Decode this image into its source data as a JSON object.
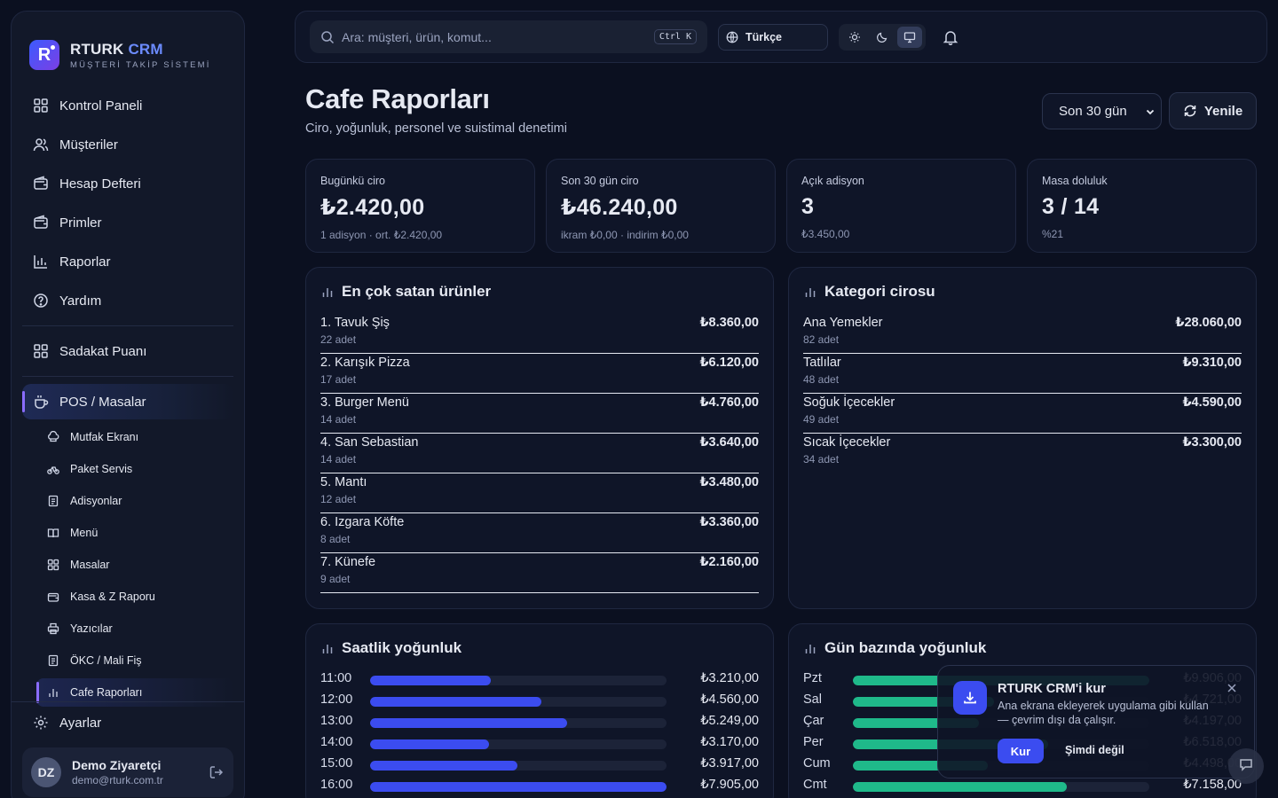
{
  "brand": {
    "name": "RTURK",
    "name_accent": "CRM",
    "subtitle": "MÜŞTERİ TAKİP SİSTEMİ",
    "logo_letter": "R"
  },
  "sidebar": {
    "items": [
      {
        "label": "Kontrol Paneli",
        "icon": "grid-icon"
      },
      {
        "label": "Müşteriler",
        "icon": "users-icon"
      },
      {
        "label": "Hesap Defteri",
        "icon": "wallet-icon"
      },
      {
        "label": "Primler",
        "icon": "wallet-icon"
      },
      {
        "label": "Raporlar",
        "icon": "chart-icon"
      },
      {
        "label": "Yardım",
        "icon": "help-icon"
      }
    ],
    "loyalty": {
      "label": "Sadakat Puanı",
      "icon": "grid-icon"
    },
    "pos": {
      "label": "POS / Masalar",
      "icon": "cup-icon"
    },
    "pos_items": [
      {
        "label": "Mutfak Ekranı",
        "icon": "chef-icon"
      },
      {
        "label": "Paket Servis",
        "icon": "bike-icon"
      },
      {
        "label": "Adisyonlar",
        "icon": "receipt-icon"
      },
      {
        "label": "Menü",
        "icon": "book-icon"
      },
      {
        "label": "Masalar",
        "icon": "grid-icon"
      },
      {
        "label": "Kasa & Z Raporu",
        "icon": "wallet-icon"
      },
      {
        "label": "Yazıcılar",
        "icon": "printer-icon"
      },
      {
        "label": "ÖKC / Mali Fiş",
        "icon": "receipt-icon"
      },
      {
        "label": "Cafe Raporları",
        "icon": "chart-icon"
      }
    ],
    "settings": {
      "label": "Ayarlar",
      "icon": "gear-icon"
    },
    "user": {
      "initials": "DZ",
      "name": "Demo Ziyaretçi",
      "email": "demo@rturk.com.tr"
    }
  },
  "topbar": {
    "search_placeholder": "Ara: müşteri, ürün, komut...",
    "search_shortcut": "Ctrl K",
    "language": "Türkçe"
  },
  "header": {
    "title": "Cafe Raporları",
    "subtitle": "Ciro, yoğunluk, personel ve suistimal denetimi",
    "period_options": [
      "Son 30 gün"
    ],
    "period_selected": "Son 30 gün",
    "refresh_label": "Yenile"
  },
  "stats": [
    {
      "label": "Bugünkü ciro",
      "value": "₺2.420,00",
      "sub": "1 adisyon · ort. ₺2.420,00"
    },
    {
      "label": "Son 30 gün ciro",
      "value": "₺46.240,00",
      "sub": "ikram ₺0,00 · indirim ₺0,00"
    },
    {
      "label": "Açık adisyon",
      "value": "3",
      "sub": "₺3.450,00"
    },
    {
      "label": "Masa doluluk",
      "value": "3 / 14",
      "sub": "%21"
    }
  ],
  "top_products": {
    "title": "En çok satan ürünler",
    "items": [
      {
        "name": "1. Tavuk Şiş",
        "qty": "22 adet",
        "amount": "₺8.360,00"
      },
      {
        "name": "2. Karışık Pizza",
        "qty": "17 adet",
        "amount": "₺6.120,00"
      },
      {
        "name": "3. Burger Menü",
        "qty": "14 adet",
        "amount": "₺4.760,00"
      },
      {
        "name": "4. San Sebastian",
        "qty": "14 adet",
        "amount": "₺3.640,00"
      },
      {
        "name": "5. Mantı",
        "qty": "12 adet",
        "amount": "₺3.480,00"
      },
      {
        "name": "6. Izgara Köfte",
        "qty": "8 adet",
        "amount": "₺3.360,00"
      },
      {
        "name": "7. Künefe",
        "qty": "9 adet",
        "amount": "₺2.160,00"
      }
    ]
  },
  "category_revenue": {
    "title": "Kategori cirosu",
    "items": [
      {
        "name": "Ana Yemekler",
        "qty": "82 adet",
        "amount": "₺28.060,00"
      },
      {
        "name": "Tatlılar",
        "qty": "48 adet",
        "amount": "₺9.310,00"
      },
      {
        "name": "Soğuk İçecekler",
        "qty": "49 adet",
        "amount": "₺4.590,00"
      },
      {
        "name": "Sıcak İçecekler",
        "qty": "34 adet",
        "amount": "₺3.300,00"
      }
    ]
  },
  "chart_data": [
    {
      "type": "bar",
      "title": "Saatlik yoğunluk",
      "orientation": "horizontal",
      "categories": [
        "11:00",
        "12:00",
        "13:00",
        "14:00",
        "15:00",
        "16:00"
      ],
      "values": [
        3210,
        4560,
        5249,
        3170,
        3917,
        7905
      ],
      "value_labels": [
        "₺3.210,00",
        "₺4.560,00",
        "₺5.249,00",
        "₺3.170,00",
        "₺3.917,00",
        "₺7.905,00"
      ],
      "ylim": [
        0,
        7905
      ],
      "color": "#3b4cf0"
    },
    {
      "type": "bar",
      "title": "Gün bazında yoğunluk",
      "orientation": "horizontal",
      "categories": [
        "Pzt",
        "Sal",
        "Çar",
        "Per",
        "Cum",
        "Cmt"
      ],
      "values": [
        9906,
        4721,
        4197,
        6518,
        4498,
        7158
      ],
      "value_labels": [
        "₺9.906,00",
        "₺4.721,00",
        "₺4.197,00",
        "₺6.518,00",
        "₺4.498,00",
        "₺7.158,00"
      ],
      "ylim": [
        0,
        9906
      ],
      "color": "#1fb98a"
    }
  ],
  "install_toast": {
    "title": "RTURK CRM'i kur",
    "text": "Ana ekrana ekleyerek uygulama gibi kullan — çevrim dışı da çalışır.",
    "install_label": "Kur",
    "later_label": "Şimdi değil"
  }
}
